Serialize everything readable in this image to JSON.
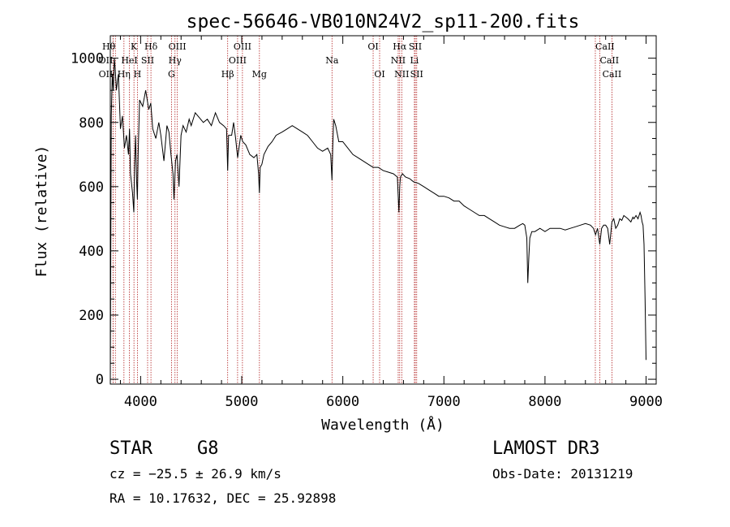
{
  "chart_data": {
    "type": "line",
    "title": "spec-56646-VB010N24V2_sp11-200.fits",
    "xlabel": "Wavelength (Å)",
    "ylabel": "Flux (relative)",
    "xlim": [
      3700,
      9100
    ],
    "ylim": [
      -15,
      1070
    ],
    "xticks": [
      4000,
      5000,
      6000,
      7000,
      8000,
      9000
    ],
    "yticks": [
      0,
      200,
      400,
      600,
      800,
      1000
    ],
    "grid": false,
    "series": [
      {
        "name": "flux",
        "x": [
          3700,
          3710,
          3720,
          3730,
          3740,
          3750,
          3760,
          3780,
          3800,
          3820,
          3840,
          3860,
          3880,
          3890,
          3900,
          3920,
          3933,
          3940,
          3950,
          3960,
          3968,
          3975,
          3990,
          4020,
          4050,
          4080,
          4100,
          4120,
          4150,
          4180,
          4200,
          4230,
          4260,
          4280,
          4300,
          4320,
          4330,
          4345,
          4360,
          4380,
          4400,
          4420,
          4450,
          4480,
          4500,
          4540,
          4580,
          4620,
          4660,
          4700,
          4740,
          4780,
          4820,
          4850,
          4861,
          4870,
          4900,
          4920,
          4940,
          4960,
          4990,
          5010,
          5040,
          5080,
          5120,
          5150,
          5167,
          5175,
          5183,
          5200,
          5220,
          5260,
          5300,
          5340,
          5400,
          5450,
          5500,
          5550,
          5600,
          5650,
          5700,
          5750,
          5800,
          5850,
          5880,
          5893,
          5900,
          5910,
          5930,
          5960,
          6000,
          6050,
          6100,
          6150,
          6200,
          6250,
          6300,
          6350,
          6400,
          6450,
          6500,
          6540,
          6555,
          6563,
          6570,
          6590,
          6620,
          6660,
          6700,
          6750,
          6800,
          6850,
          6900,
          6950,
          7000,
          7050,
          7100,
          7150,
          7200,
          7250,
          7300,
          7350,
          7400,
          7450,
          7500,
          7550,
          7600,
          7650,
          7700,
          7750,
          7780,
          7800,
          7820,
          7830,
          7840,
          7850,
          7870,
          7900,
          7950,
          8000,
          8050,
          8100,
          8150,
          8200,
          8250,
          8300,
          8350,
          8400,
          8450,
          8480,
          8500,
          8520,
          8542,
          8560,
          8580,
          8600,
          8620,
          8640,
          8662,
          8680,
          8700,
          8720,
          8740,
          8760,
          8780,
          8800,
          8820,
          8850,
          8870,
          8880,
          8900,
          8920,
          8940,
          8950,
          8960,
          8970,
          8980,
          8990,
          9000
        ],
        "values": [
          0,
          820,
          950,
          900,
          1000,
          960,
          900,
          950,
          780,
          820,
          720,
          760,
          700,
          780,
          640,
          580,
          520,
          660,
          760,
          620,
          560,
          700,
          870,
          850,
          900,
          840,
          860,
          780,
          750,
          800,
          760,
          680,
          790,
          770,
          700,
          640,
          560,
          680,
          700,
          600,
          760,
          790,
          770,
          810,
          790,
          830,
          815,
          800,
          810,
          790,
          830,
          800,
          790,
          780,
          650,
          760,
          760,
          800,
          750,
          690,
          760,
          740,
          730,
          700,
          690,
          700,
          640,
          580,
          660,
          670,
          700,
          725,
          740,
          760,
          770,
          780,
          790,
          780,
          770,
          760,
          740,
          720,
          710,
          720,
          700,
          620,
          720,
          810,
          790,
          740,
          740,
          720,
          700,
          690,
          680,
          670,
          660,
          660,
          650,
          645,
          640,
          630,
          520,
          600,
          630,
          640,
          630,
          625,
          615,
          610,
          600,
          590,
          580,
          570,
          570,
          565,
          555,
          555,
          540,
          530,
          520,
          510,
          510,
          500,
          490,
          480,
          475,
          470,
          470,
          480,
          485,
          480,
          440,
          300,
          380,
          440,
          460,
          460,
          470,
          460,
          470,
          470,
          470,
          465,
          470,
          475,
          480,
          485,
          480,
          470,
          450,
          470,
          420,
          470,
          480,
          480,
          470,
          420,
          490,
          500,
          470,
          480,
          500,
          495,
          510,
          505,
          500,
          490,
          505,
          500,
          510,
          500,
          520,
          510,
          490,
          480,
          420,
          250,
          60
        ]
      }
    ],
    "lines": [
      {
        "label": "Hθ",
        "x": 3750,
        "row": 0,
        "align": "end"
      },
      {
        "label": "K",
        "x": 3934,
        "row": 0,
        "align": "middle"
      },
      {
        "label": "Hδ",
        "x": 4102,
        "row": 0,
        "align": "middle"
      },
      {
        "label": "OIII",
        "x": 4363,
        "row": 0,
        "align": "middle"
      },
      {
        "label": "OIII",
        "x": 5007,
        "row": 0,
        "align": "middle"
      },
      {
        "label": "OI",
        "x": 6300,
        "row": 0,
        "align": "middle"
      },
      {
        "label": "Hα",
        "x": 6563,
        "row": 0,
        "align": "middle"
      },
      {
        "label": "SII",
        "x": 6717,
        "row": 0,
        "align": "middle"
      },
      {
        "label": "CaII",
        "x": 8498,
        "row": 0,
        "align": "start"
      },
      {
        "label": "OII",
        "x": 3727,
        "row": 1,
        "align": "end"
      },
      {
        "label": "HeI",
        "x": 3889,
        "row": 1,
        "align": "middle"
      },
      {
        "label": "SII",
        "x": 4069,
        "row": 1,
        "align": "middle"
      },
      {
        "label": "Hγ",
        "x": 4340,
        "row": 1,
        "align": "middle"
      },
      {
        "label": "OIII",
        "x": 4959,
        "row": 1,
        "align": "middle"
      },
      {
        "label": "Na",
        "x": 5893,
        "row": 1,
        "align": "middle"
      },
      {
        "label": "NII",
        "x": 6548,
        "row": 1,
        "align": "middle"
      },
      {
        "label": "Li",
        "x": 6708,
        "row": 1,
        "align": "middle"
      },
      {
        "label": "CaII",
        "x": 8542,
        "row": 1,
        "align": "start"
      },
      {
        "label": "OII",
        "x": 3727,
        "row": 2,
        "align": "end"
      },
      {
        "label": "Hη",
        "x": 3835,
        "row": 2,
        "align": "middle"
      },
      {
        "label": "H",
        "x": 3968,
        "row": 2,
        "align": "middle"
      },
      {
        "label": "G",
        "x": 4305,
        "row": 2,
        "align": "middle"
      },
      {
        "label": "Hβ",
        "x": 4861,
        "row": 2,
        "align": "middle"
      },
      {
        "label": "Mg",
        "x": 5175,
        "row": 2,
        "align": "middle"
      },
      {
        "label": "OI",
        "x": 6364,
        "row": 2,
        "align": "middle"
      },
      {
        "label": "NII",
        "x": 6583,
        "row": 2,
        "align": "middle"
      },
      {
        "label": "SII",
        "x": 6731,
        "row": 2,
        "align": "middle"
      },
      {
        "label": "CaII",
        "x": 8662,
        "row": 2,
        "align": "middle"
      }
    ]
  },
  "info": {
    "class": "STAR",
    "subclass": "G8",
    "survey": "LAMOST DR3",
    "cz": "cz = −25.5 ± 26.9 km/s",
    "obs_date": "Obs-Date: 20131219",
    "coords": "RA =  10.17632, DEC =  25.92898"
  }
}
